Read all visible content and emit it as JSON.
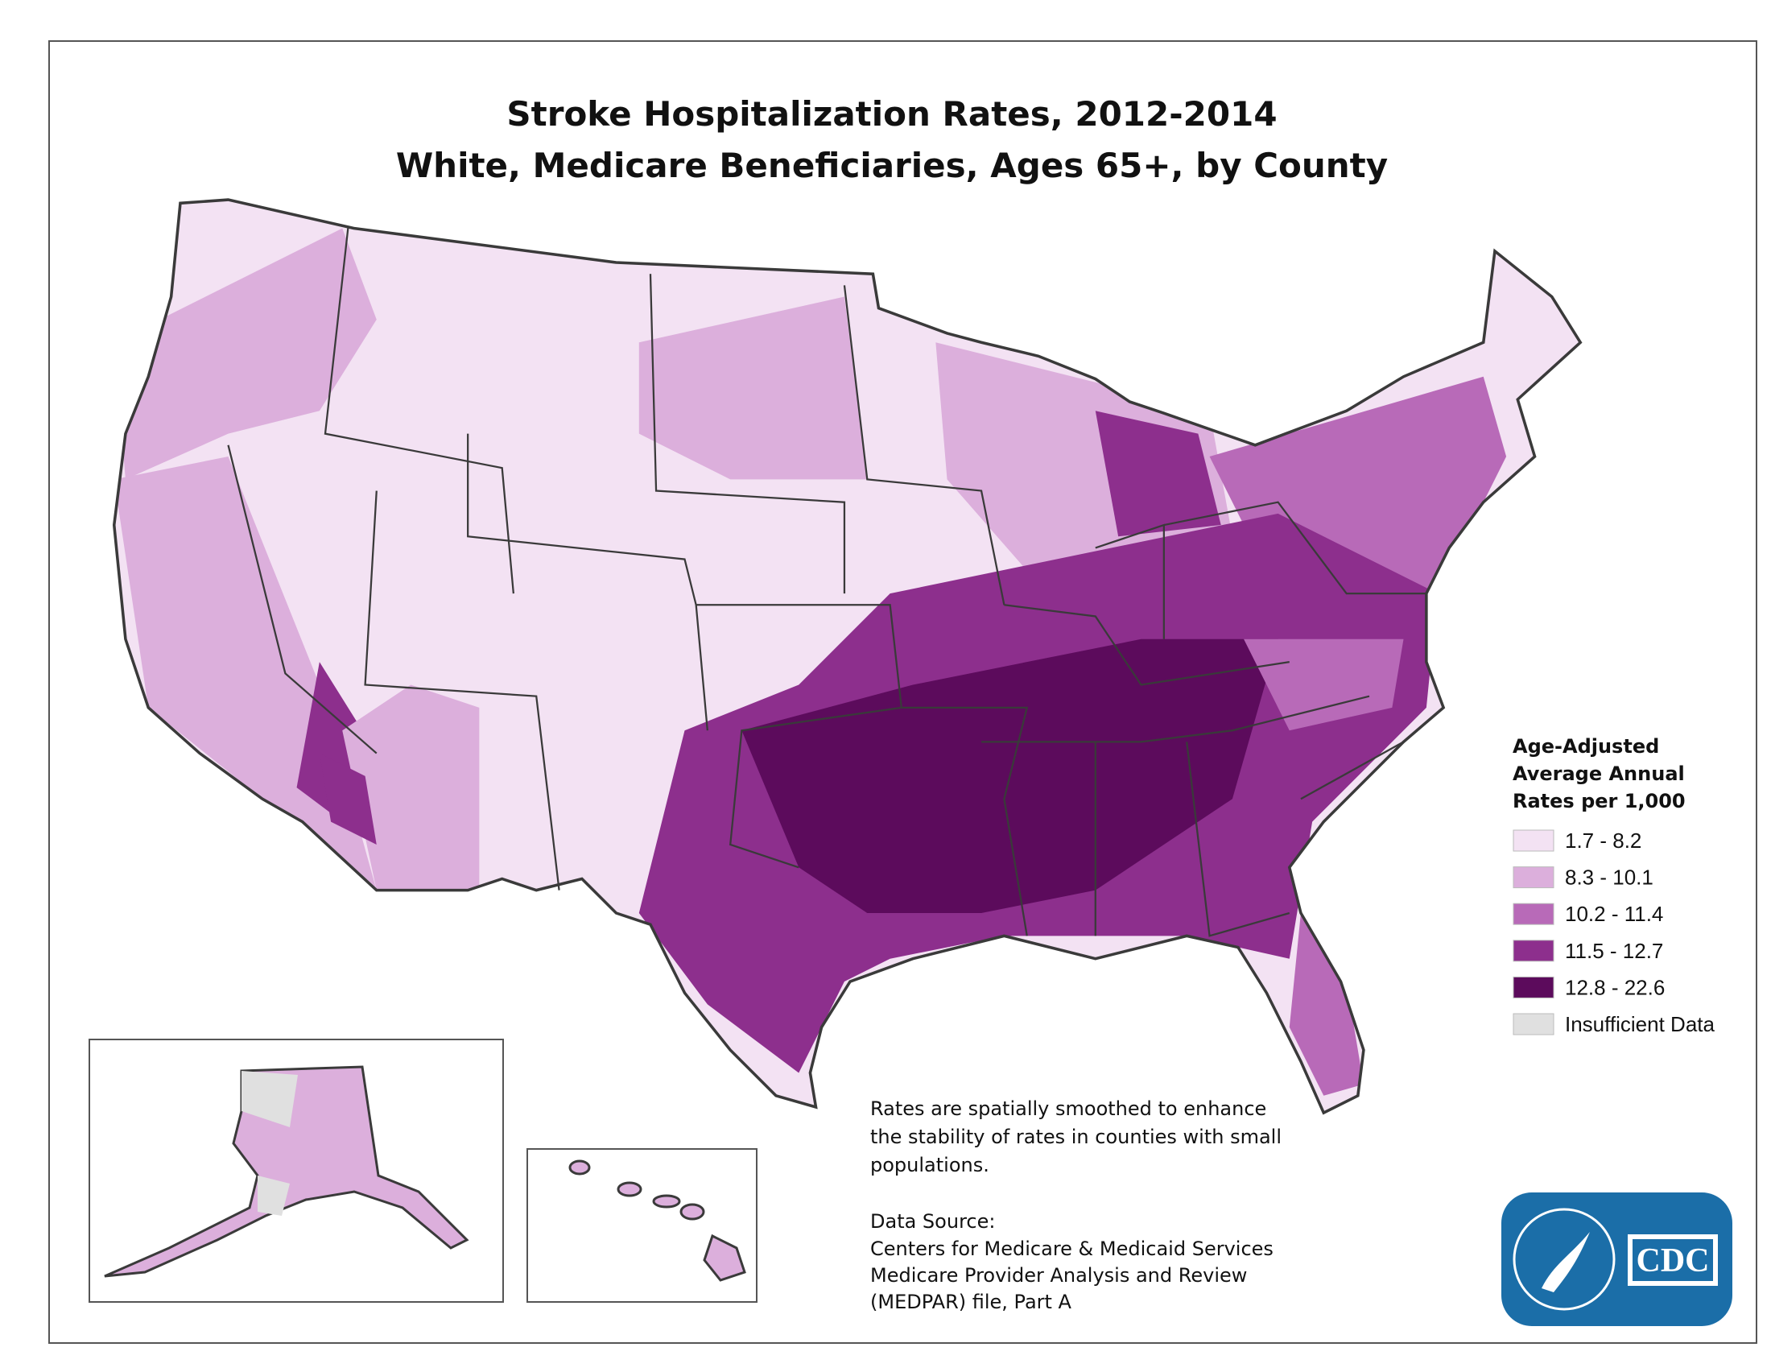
{
  "title_lines": [
    "Stroke Hospitalization Rates, 2012-2014",
    "White, Medicare Beneficiaries, Ages 65+, by County"
  ],
  "legend": {
    "title_lines": [
      "Age-Adjusted",
      "Average Annual",
      "Rates per 1,000"
    ],
    "items": [
      {
        "label": "1.7 - 8.2",
        "color": "#f3e2f3"
      },
      {
        "label": "8.3 - 10.1",
        "color": "#dcafdc"
      },
      {
        "label": "10.2 - 11.4",
        "color": "#b86ab8"
      },
      {
        "label": "11.5 - 12.7",
        "color": "#8d2f8d"
      },
      {
        "label": "12.8 - 22.6",
        "color": "#5c0b5c"
      },
      {
        "label": "Insufficient Data",
        "color": "#e0e0e0"
      }
    ]
  },
  "note_lines": [
    "Rates are spatially smoothed to enhance",
    "the stability of rates in counties with small",
    "populations."
  ],
  "source_lines": [
    "Data Source:",
    "Centers for Medicare & Medicaid Services",
    "Medicare Provider Analysis and Review",
    "(MEDPAR) file, Part A"
  ],
  "logo": {
    "text": "CDC"
  }
}
